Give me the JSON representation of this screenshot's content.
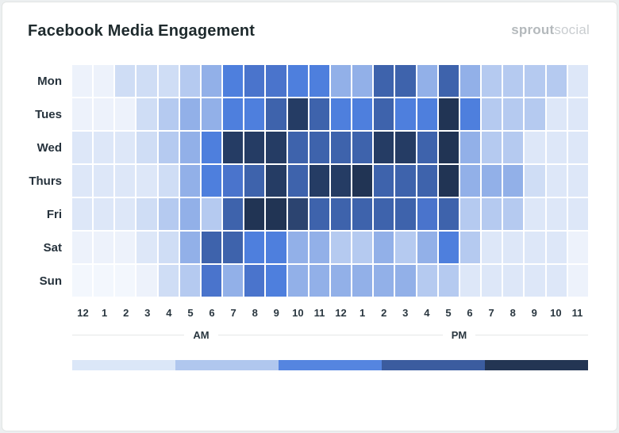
{
  "header": {
    "title": "Facebook Media Engagement",
    "logo": {
      "part1": "sprout",
      "part2": "social"
    }
  },
  "chart_data": {
    "type": "heatmap",
    "title": "Facebook Media Engagement",
    "x_axis": {
      "hour_labels": [
        "12",
        "1",
        "2",
        "3",
        "4",
        "5",
        "6",
        "7",
        "8",
        "9",
        "10",
        "11",
        "12",
        "1",
        "2",
        "3",
        "4",
        "5",
        "6",
        "7",
        "8",
        "9",
        "10",
        "11"
      ],
      "period_labels": [
        "AM",
        "PM"
      ]
    },
    "y_axis": {
      "day_labels": [
        "Mon",
        "Tues",
        "Wed",
        "Thurs",
        "Fri",
        "Sat",
        "Sun"
      ]
    },
    "intensity_scale": {
      "description": "Engagement intensity level 0 (lowest) to 11 (highest); palette index = level",
      "palette": [
        "#f3f7fd",
        "#edf2fb",
        "#dde7f8",
        "#cfddf5",
        "#b5caf0",
        "#92b0e8",
        "#4e7fdd",
        "#4a74cc",
        "#3e63ac",
        "#2c4470",
        "#253c64",
        "#213454"
      ]
    },
    "rows": [
      {
        "day": "Mon",
        "values": [
          1,
          1,
          3,
          3,
          3,
          4,
          5,
          6,
          7,
          7,
          6,
          6,
          5,
          5,
          8,
          8,
          5,
          8,
          5,
          4,
          4,
          4,
          4,
          2
        ]
      },
      {
        "day": "Tues",
        "values": [
          1,
          1,
          1,
          3,
          4,
          5,
          5,
          6,
          6,
          8,
          10,
          8,
          6,
          6,
          8,
          6,
          6,
          11,
          6,
          4,
          4,
          4,
          2,
          2
        ]
      },
      {
        "day": "Wed",
        "values": [
          2,
          2,
          2,
          3,
          4,
          5,
          6,
          10,
          10,
          10,
          8,
          8,
          8,
          8,
          10,
          10,
          8,
          11,
          5,
          4,
          4,
          2,
          2,
          2
        ]
      },
      {
        "day": "Thurs",
        "values": [
          2,
          2,
          2,
          2,
          3,
          5,
          6,
          7,
          8,
          10,
          8,
          10,
          10,
          11,
          8,
          8,
          8,
          11,
          5,
          5,
          5,
          3,
          2,
          2
        ]
      },
      {
        "day": "Fri",
        "values": [
          2,
          2,
          2,
          3,
          4,
          5,
          4,
          8,
          11,
          11,
          9,
          8,
          8,
          8,
          8,
          8,
          7,
          8,
          4,
          4,
          4,
          2,
          2,
          2
        ]
      },
      {
        "day": "Sat",
        "values": [
          1,
          1,
          1,
          2,
          3,
          5,
          8,
          8,
          6,
          6,
          5,
          5,
          4,
          4,
          5,
          4,
          5,
          6,
          4,
          2,
          2,
          2,
          2,
          1
        ]
      },
      {
        "day": "Sun",
        "values": [
          0,
          0,
          0,
          1,
          3,
          4,
          7,
          5,
          7,
          6,
          5,
          5,
          5,
          5,
          5,
          5,
          4,
          4,
          2,
          2,
          2,
          2,
          2,
          1
        ]
      }
    ],
    "legend": {
      "colors": [
        "#dbe7f8",
        "#b0c7ee",
        "#5585e0",
        "#3b5c9f",
        "#233553"
      ]
    }
  }
}
